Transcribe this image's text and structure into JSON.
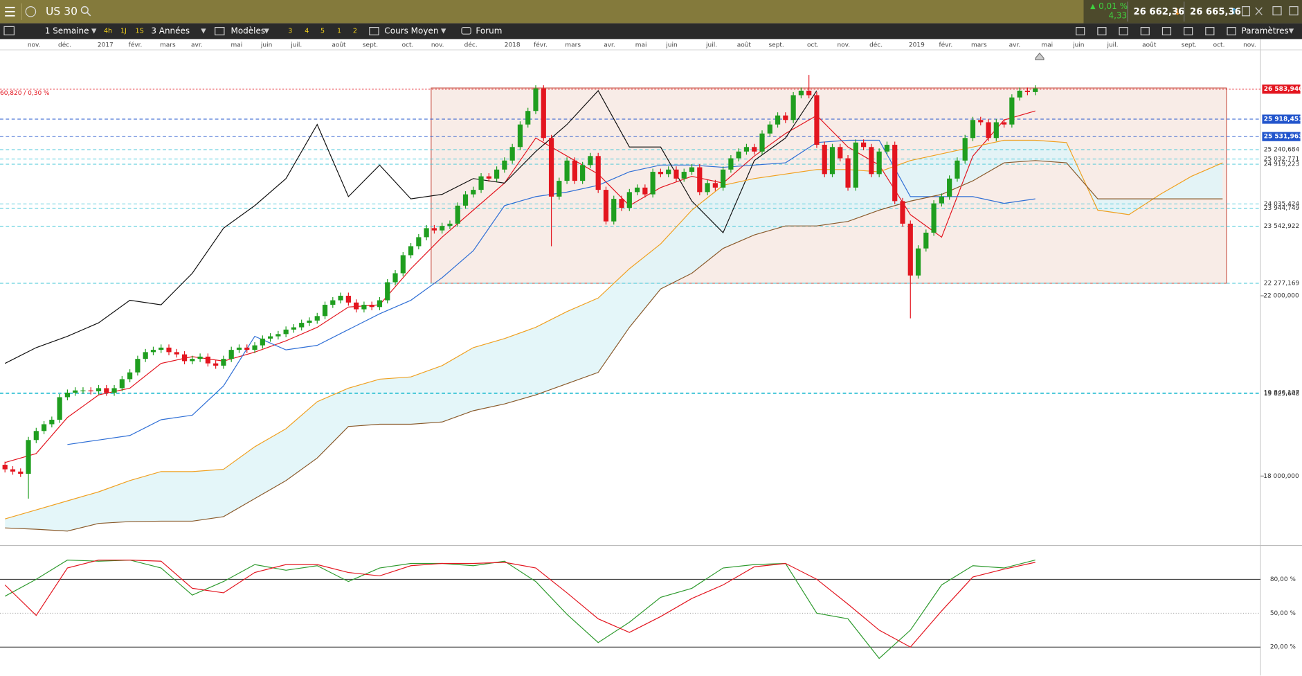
{
  "header": {
    "symbol": "US 30",
    "change_pct": "0,01 %",
    "change": "4,33",
    "bid": "26 662,36",
    "ask": "26 665,36"
  },
  "toolbar": {
    "period": "1 Semaine",
    "quick": [
      "4h",
      "1J",
      "1S"
    ],
    "range": "3 Années",
    "templates": "Modèles",
    "slots": [
      "3",
      "4",
      "5",
      "1",
      "2"
    ],
    "average": "Cours Moyen",
    "forum": "Forum",
    "settings": "Paramètres"
  },
  "chart_data": [
    {
      "type": "candlestick",
      "x_labels": [
        "nov.",
        "déc.",
        "2017",
        "févr.",
        "mars",
        "avr.",
        "mai",
        "juin",
        "juil.",
        "août",
        "sept.",
        "oct.",
        "nov.",
        "déc.",
        "2018",
        "févr.",
        "mars",
        "avr.",
        "mai",
        "juin",
        "juil.",
        "août",
        "sept.",
        "oct.",
        "nov.",
        "déc.",
        "2019",
        "févr.",
        "mars",
        "avr.",
        "mai",
        "juin",
        "juil.",
        "août",
        "sept.",
        "oct.",
        "nov."
      ],
      "colors": {
        "up": "#1f9e1f",
        "down": "#e3151f"
      },
      "open": [
        18250,
        18150,
        18100,
        18050,
        18800,
        19000,
        19150,
        19250,
        19750,
        19850,
        19900,
        19900,
        19880,
        19950,
        19850,
        19950,
        20150,
        20300,
        20600,
        20750,
        20800,
        20850,
        20750,
        20700,
        20550,
        20600,
        20650,
        20500,
        20450,
        20600,
        20800,
        20850,
        20800,
        20900,
        21050,
        21100,
        21150,
        21250,
        21300,
        21400,
        21450,
        21550,
        21800,
        21900,
        22000,
        21850,
        21700,
        21800,
        21750,
        21900,
        22300,
        22500,
        22900,
        23100,
        23300,
        23500,
        23450,
        23550,
        23600,
        24000,
        24250,
        24350,
        24650,
        24600,
        24800,
        25000,
        25300,
        25800,
        26100,
        26600,
        25500,
        24200,
        24550,
        25000,
        24550,
        24900,
        25100,
        24350,
        23650,
        24150,
        23950,
        24300,
        24400,
        24250,
        24750,
        24700,
        24800,
        24600,
        24750,
        24850,
        24300,
        24500,
        24400,
        24800,
        25050,
        25200,
        25300,
        25200,
        25600,
        25800,
        26000,
        25900,
        26450,
        26550,
        26450,
        25350,
        24700,
        25300,
        25050,
        24400,
        25400,
        25300,
        24700,
        25200,
        25350,
        24100,
        23600,
        22450,
        23050,
        23400,
        24050,
        24200,
        24600,
        25000,
        25500,
        25900,
        25850,
        25500,
        25850,
        25800,
        26400,
        26550,
        26520
      ],
      "high": [
        18320,
        18220,
        18170,
        18870,
        19070,
        19220,
        19320,
        19820,
        19920,
        19970,
        19970,
        19970,
        20020,
        20020,
        20020,
        20220,
        20370,
        20670,
        20820,
        20870,
        20920,
        20920,
        20820,
        20770,
        20670,
        20720,
        20720,
        20570,
        20670,
        20870,
        20920,
        20920,
        20970,
        21120,
        21170,
        21220,
        21320,
        21370,
        21470,
        21520,
        21620,
        21870,
        21970,
        22070,
        22070,
        21920,
        21870,
        21870,
        21970,
        22370,
        22570,
        22970,
        23170,
        23370,
        23570,
        23570,
        23620,
        23670,
        24070,
        24320,
        24420,
        24720,
        24720,
        24870,
        25070,
        25370,
        25870,
        26170,
        26670,
        26670,
        25570,
        24620,
        25070,
        25070,
        24970,
        25170,
        25170,
        24420,
        24220,
        24220,
        24370,
        24470,
        24470,
        24820,
        24820,
        24870,
        24870,
        24820,
        24920,
        24920,
        24570,
        24570,
        24870,
        25120,
        25270,
        25370,
        25370,
        25670,
        25870,
        26070,
        26070,
        26520,
        26620,
        26900,
        26520,
        25420,
        25370,
        25370,
        25120,
        25470,
        25470,
        25370,
        25270,
        25420,
        25420,
        24170,
        23670,
        23120,
        23470,
        24120,
        24270,
        24670,
        25070,
        25570,
        25970,
        25970,
        25920,
        25920,
        25920,
        26470,
        26620,
        26620,
        26670
      ],
      "low": [
        18080,
        18030,
        17980,
        17500,
        18730,
        18930,
        19080,
        19180,
        19680,
        19780,
        19830,
        19810,
        19810,
        19780,
        19780,
        19880,
        20080,
        20230,
        20530,
        20680,
        20730,
        20680,
        20630,
        20480,
        20480,
        20530,
        20430,
        20380,
        20380,
        20530,
        20730,
        20730,
        20730,
        20830,
        20980,
        21030,
        21080,
        21180,
        21230,
        21330,
        21380,
        21480,
        21730,
        21830,
        21780,
        21630,
        21630,
        21680,
        21680,
        21830,
        22230,
        22430,
        22830,
        23030,
        23230,
        23380,
        23380,
        23480,
        23530,
        23930,
        24180,
        24280,
        24530,
        24530,
        24730,
        24930,
        25230,
        25730,
        26030,
        25430,
        23100,
        24130,
        24480,
        24480,
        24480,
        24830,
        24280,
        23580,
        23580,
        23880,
        23880,
        24230,
        24180,
        24180,
        24630,
        24630,
        24530,
        24530,
        24680,
        24230,
        24230,
        24330,
        24330,
        24730,
        24980,
        25130,
        25130,
        25130,
        25530,
        25730,
        25830,
        25830,
        26380,
        26380,
        25280,
        24630,
        24630,
        24980,
        24330,
        24330,
        25230,
        24630,
        24630,
        25130,
        24030,
        23530,
        21500,
        22380,
        22980,
        23330,
        23980,
        24130,
        24530,
        24930,
        25430,
        25780,
        25430,
        25430,
        25730,
        25730,
        26330,
        26450,
        26450
      ],
      "close": [
        18150,
        18100,
        18050,
        18800,
        19000,
        19150,
        19250,
        19750,
        19850,
        19900,
        19900,
        19880,
        19950,
        19850,
        19950,
        20150,
        20300,
        20600,
        20750,
        20800,
        20850,
        20750,
        20700,
        20550,
        20600,
        20650,
        20500,
        20450,
        20600,
        20800,
        20850,
        20800,
        20900,
        21050,
        21100,
        21150,
        21250,
        21300,
        21400,
        21450,
        21550,
        21800,
        21900,
        22000,
        21850,
        21700,
        21800,
        21750,
        21900,
        22300,
        22500,
        22900,
        23100,
        23300,
        23500,
        23450,
        23550,
        23600,
        24000,
        24250,
        24350,
        24650,
        24600,
        24800,
        25000,
        25300,
        25800,
        26100,
        26600,
        25500,
        24200,
        24550,
        25000,
        24550,
        24900,
        25100,
        24350,
        23650,
        24150,
        23950,
        24300,
        24400,
        24250,
        24750,
        24700,
        24800,
        24600,
        24750,
        24850,
        24300,
        24500,
        24400,
        24800,
        25050,
        25200,
        25300,
        25200,
        25600,
        25800,
        26000,
        25900,
        26450,
        26550,
        26450,
        25350,
        24700,
        25300,
        25050,
        24400,
        25400,
        25300,
        24700,
        25200,
        25350,
        24100,
        23600,
        22450,
        23050,
        23400,
        24050,
        24200,
        24600,
        25000,
        25500,
        25900,
        25850,
        25500,
        25850,
        25800,
        26400,
        26550,
        26520,
        26600
      ],
      "series": [
        {
          "color": "#e3151f",
          "values": [
            18300,
            18500,
            19300,
            19800,
            19950,
            20500,
            20650,
            20550,
            20750,
            21000,
            21300,
            21750,
            21800,
            22600,
            23300,
            23900,
            24500,
            25500,
            25100,
            24700,
            24000,
            24400,
            24650,
            24500,
            25100,
            25600,
            26000,
            25300,
            24900,
            23800,
            23300,
            25100,
            25900,
            26100
          ]
        },
        {
          "color": "#2f6fd6",
          "values": [
            18700,
            18800,
            18900,
            19250,
            19350,
            20000,
            21100,
            20800,
            20900,
            21250,
            21600,
            21900,
            22400,
            23000,
            24000,
            24200,
            24300,
            24450,
            24750,
            24900,
            24900,
            24850,
            24900,
            24950,
            25400,
            25450,
            25450,
            24200,
            24200,
            24200,
            24050,
            24150
          ]
        },
        {
          "color": "#111111",
          "values": [
            20500,
            20850,
            21100,
            21400,
            21900,
            21800,
            22500,
            23500,
            24000,
            24600,
            25800,
            24200,
            24900,
            24150,
            24250,
            24600,
            24500,
            25200,
            25800,
            26550,
            25300,
            25300,
            24100,
            23400,
            25000,
            25500,
            26550
          ]
        },
        {
          "color": "#f0a020",
          "values": [
            17050,
            17250,
            17450,
            17650,
            17900,
            18100,
            18100,
            18150,
            18650,
            19050,
            19650,
            19950,
            20150,
            20200,
            20450,
            20850,
            21050,
            21300,
            21650,
            21950,
            22600,
            23150,
            23900,
            24450,
            24600,
            24700,
            24800,
            24800,
            24750,
            25000,
            25150,
            25300,
            25450,
            25450,
            25400,
            23900,
            23800,
            24250,
            24650,
            24950
          ]
        },
        {
          "color": "#8a5a2b",
          "values": [
            16850,
            16820,
            16780,
            16950,
            16990,
            17000,
            17000,
            17100,
            17500,
            17900,
            18400,
            19100,
            19150,
            19150,
            19200,
            19450,
            19600,
            19800,
            20050,
            20300,
            21300,
            22150,
            22500,
            23050,
            23350,
            23550,
            23550,
            23650,
            23900,
            24100,
            24250,
            24550,
            24950,
            25000,
            24950,
            24150,
            24150,
            24150,
            24150,
            24150
          ]
        }
      ],
      "cloud_color": "#dff5f8",
      "zone": {
        "high": 26610,
        "low": 22277.169,
        "color": "#f5e6df"
      },
      "annotation": "60,820 / 0,30 %",
      "levels": [
        {
          "value": 26583.94,
          "label": "26 583,940",
          "color": "#e3151f",
          "boxed": true
        },
        {
          "value": 25918.451,
          "label": "25 918,451",
          "color": "#2255cc",
          "boxed": true
        },
        {
          "value": 25531.963,
          "label": "25 531,963",
          "color": "#2255cc",
          "boxed": true
        },
        {
          "value": 25240.684,
          "label": "25 240,684",
          "color": "#3cc4d6",
          "boxed": false
        },
        {
          "value": 25032.771,
          "label": "25 032,771",
          "color": "#3cc4d6",
          "boxed": false
        },
        {
          "value": 24919.223,
          "label": "24 919,223",
          "color": "#3cc4d6",
          "boxed": false
        },
        {
          "value": 24035.424,
          "label": "24 035,424",
          "color": "#3cc4d6",
          "boxed": false
        },
        {
          "value": 23944.749,
          "label": "23 944,749",
          "color": "#3cc4d6",
          "boxed": false
        },
        {
          "value": 23542.922,
          "label": "23 542,922",
          "color": "#3cc4d6",
          "boxed": false
        },
        {
          "value": 22277.169,
          "label": "22 277,169",
          "color": "#3cc4d6",
          "boxed": false
        },
        {
          "value": 19846.107,
          "label": "19 846,107",
          "color": "#3cc4d6",
          "boxed": false
        },
        {
          "value": 19825.648,
          "label": "19 825,648",
          "color": "#3cc4d6",
          "boxed": false
        }
      ],
      "ylim": [
        16488,
        27456
      ],
      "yticks": [
        {
          "value": 22000,
          "label": "22 000,000"
        },
        {
          "value": 18000,
          "label": "18 000,000"
        }
      ]
    },
    {
      "type": "line",
      "series": [
        {
          "color": "#2e9a2e",
          "values": [
            65,
            80,
            97,
            96,
            97,
            90,
            66,
            78,
            93,
            88,
            92,
            78,
            90,
            94,
            94,
            92,
            96,
            78,
            49,
            24,
            42,
            64,
            72,
            90,
            93,
            94,
            50,
            45,
            10,
            35,
            75,
            92,
            90,
            97
          ]
        },
        {
          "color": "#e3151f",
          "values": [
            75,
            48,
            90,
            97,
            97,
            96,
            72,
            68,
            86,
            93,
            93,
            86,
            83,
            92,
            94,
            94,
            95,
            90,
            68,
            45,
            33,
            47,
            63,
            75,
            91,
            94,
            80,
            58,
            35,
            20,
            52,
            82,
            89,
            95
          ]
        }
      ],
      "ylim": [
        -4.4,
        108.8
      ],
      "yticks": [
        {
          "value": 80,
          "label": "80,00 %"
        },
        {
          "value": 50,
          "label": "50,00 %"
        },
        {
          "value": 20,
          "label": "20,00 %"
        }
      ]
    }
  ]
}
